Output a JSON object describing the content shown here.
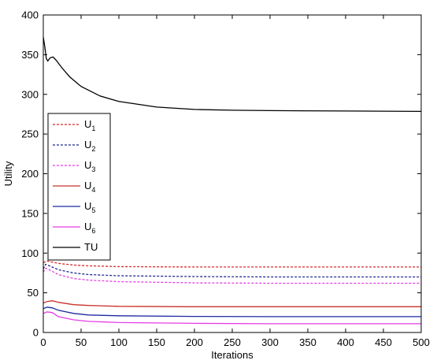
{
  "chart_data": {
    "type": "line",
    "xlabel": "Iterations",
    "ylabel": "Utility",
    "xlim": [
      0,
      500
    ],
    "ylim": [
      0,
      400
    ],
    "xticks": [
      "0",
      "50",
      "100",
      "150",
      "200",
      "250",
      "300",
      "350",
      "400",
      "450",
      "500"
    ],
    "yticks": [
      "0",
      "50",
      "100",
      "150",
      "200",
      "250",
      "300",
      "350",
      "400"
    ],
    "grid": false,
    "legend_position": "left",
    "series": [
      {
        "name": "U1",
        "label_base": "U",
        "label_sub": "1",
        "color": "#d62728",
        "dash": true,
        "points": [
          [
            0,
            88
          ],
          [
            5,
            90
          ],
          [
            10,
            89
          ],
          [
            20,
            87
          ],
          [
            40,
            85
          ],
          [
            60,
            84
          ],
          [
            100,
            83
          ],
          [
            200,
            82.5
          ],
          [
            300,
            82.5
          ],
          [
            500,
            82.5
          ]
        ]
      },
      {
        "name": "U2",
        "label_base": "U",
        "label_sub": "2",
        "color": "#1f2a8c",
        "dash": true,
        "points": [
          [
            0,
            80
          ],
          [
            3,
            86
          ],
          [
            8,
            84
          ],
          [
            20,
            79
          ],
          [
            40,
            75
          ],
          [
            60,
            73
          ],
          [
            100,
            71.5
          ],
          [
            200,
            70.5
          ],
          [
            300,
            70
          ],
          [
            500,
            70
          ]
        ]
      },
      {
        "name": "U3",
        "label_base": "U",
        "label_sub": "3",
        "color": "#e040e0",
        "dash": true,
        "points": [
          [
            0,
            76
          ],
          [
            3,
            81
          ],
          [
            8,
            79
          ],
          [
            20,
            73
          ],
          [
            40,
            68
          ],
          [
            60,
            66
          ],
          [
            100,
            64
          ],
          [
            200,
            62.5
          ],
          [
            300,
            62
          ],
          [
            500,
            62
          ]
        ]
      },
      {
        "name": "U4",
        "label_base": "U",
        "label_sub": "4",
        "color": "#c8302a",
        "dash": false,
        "points": [
          [
            0,
            37
          ],
          [
            5,
            39
          ],
          [
            12,
            40
          ],
          [
            20,
            38
          ],
          [
            40,
            35
          ],
          [
            60,
            34
          ],
          [
            100,
            33
          ],
          [
            200,
            32.5
          ],
          [
            300,
            32.5
          ],
          [
            500,
            32.5
          ]
        ]
      },
      {
        "name": "U5",
        "label_base": "U",
        "label_sub": "5",
        "color": "#1c2aa0",
        "dash": false,
        "points": [
          [
            0,
            30
          ],
          [
            5,
            32
          ],
          [
            12,
            31
          ],
          [
            20,
            28
          ],
          [
            40,
            24
          ],
          [
            60,
            22
          ],
          [
            100,
            21
          ],
          [
            200,
            20.2
          ],
          [
            300,
            20
          ],
          [
            500,
            20
          ]
        ]
      },
      {
        "name": "U6",
        "label_base": "U",
        "label_sub": "6",
        "color": "#e63ce6",
        "dash": false,
        "points": [
          [
            0,
            24
          ],
          [
            5,
            26
          ],
          [
            12,
            25
          ],
          [
            20,
            20
          ],
          [
            40,
            16
          ],
          [
            60,
            14
          ],
          [
            100,
            12.5
          ],
          [
            200,
            11.5
          ],
          [
            300,
            11
          ],
          [
            500,
            11
          ]
        ]
      },
      {
        "name": "TU",
        "label_base": "TU",
        "label_sub": "",
        "color": "#000000",
        "dash": false,
        "points": [
          [
            0,
            372
          ],
          [
            2,
            360
          ],
          [
            4,
            345
          ],
          [
            6,
            342
          ],
          [
            9,
            346
          ],
          [
            13,
            347
          ],
          [
            17,
            343
          ],
          [
            25,
            333
          ],
          [
            35,
            322
          ],
          [
            50,
            310
          ],
          [
            75,
            298
          ],
          [
            100,
            291
          ],
          [
            150,
            284
          ],
          [
            200,
            281
          ],
          [
            250,
            280
          ],
          [
            300,
            279.5
          ],
          [
            400,
            279
          ],
          [
            500,
            278.5
          ]
        ]
      }
    ]
  }
}
